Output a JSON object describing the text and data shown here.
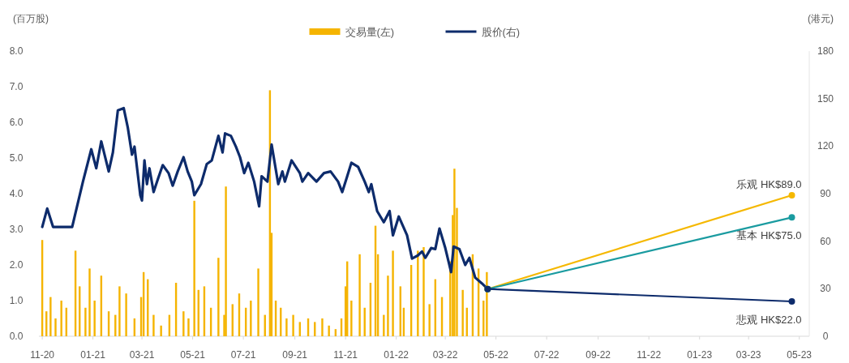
{
  "chart_data": {
    "type": "bar",
    "ylabel": "(百万股)",
    "y2label": "(港元)",
    "xlim": [
      "2020-10-28",
      "2023-05-13"
    ],
    "xticks": [
      {
        "value": "2020-11-01",
        "label": "11-20"
      },
      {
        "value": "2021-01-01",
        "label": "01-21"
      },
      {
        "value": "2021-03-01",
        "label": "03-21"
      },
      {
        "value": "2021-05-01",
        "label": "05-21"
      },
      {
        "value": "2021-07-01",
        "label": "07-21"
      },
      {
        "value": "2021-09-01",
        "label": "09-21"
      },
      {
        "value": "2021-11-01",
        "label": "11-21"
      },
      {
        "value": "2022-01-01",
        "label": "01-22"
      },
      {
        "value": "2022-03-01",
        "label": "03-22"
      },
      {
        "value": "2022-05-01",
        "label": "05-22"
      },
      {
        "value": "2022-07-01",
        "label": "07-22"
      },
      {
        "value": "2022-09-01",
        "label": "09-22"
      },
      {
        "value": "2022-11-01",
        "label": "11-22"
      },
      {
        "value": "2023-01-01",
        "label": "01-23"
      },
      {
        "value": "2023-03-01",
        "label": "03-23"
      },
      {
        "value": "2023-05-01",
        "label": "05-23"
      }
    ],
    "ylim": [
      0,
      8
    ],
    "yticks": [
      {
        "value": 0,
        "label": "0.0"
      },
      {
        "value": 1,
        "label": "1.0"
      },
      {
        "value": 2,
        "label": "2.0"
      },
      {
        "value": 3,
        "label": "3.0"
      },
      {
        "value": 4,
        "label": "4.0"
      },
      {
        "value": 5,
        "label": "5.0"
      },
      {
        "value": 6,
        "label": "6.0"
      },
      {
        "value": 7,
        "label": "7.0"
      },
      {
        "value": 8,
        "label": "8.0"
      }
    ],
    "y2lim": [
      0,
      180
    ],
    "y2ticks": [
      0,
      30,
      60,
      90,
      120,
      150,
      180
    ],
    "legend": "top",
    "grid": false,
    "series": [
      {
        "name": "交易量(左)",
        "color": "#f5b400",
        "x": [
          "2020-11-01",
          "2020-11-06",
          "2020-11-11",
          "2020-11-17",
          "2020-11-24",
          "2020-11-30",
          "2020-12-11",
          "2020-12-16",
          "2020-12-23",
          "2020-12-28",
          "2021-01-03",
          "2021-01-11",
          "2021-01-20",
          "2021-01-28",
          "2021-02-02",
          "2021-02-10",
          "2021-02-20",
          "2021-02-28",
          "2021-03-03",
          "2021-03-08",
          "2021-03-15",
          "2021-03-24",
          "2021-04-03",
          "2021-04-11",
          "2021-04-20",
          "2021-04-26",
          "2021-05-03",
          "2021-05-08",
          "2021-05-15",
          "2021-05-23",
          "2021-06-01",
          "2021-06-08",
          "2021-06-10",
          "2021-06-18",
          "2021-06-26",
          "2021-07-04",
          "2021-07-10",
          "2021-07-19",
          "2021-07-27",
          "2021-08-02",
          "2021-08-04",
          "2021-08-09",
          "2021-08-15",
          "2021-08-22",
          "2021-08-30",
          "2021-09-07",
          "2021-09-17",
          "2021-09-25",
          "2021-10-04",
          "2021-10-12",
          "2021-10-20",
          "2021-10-27",
          "2021-11-01",
          "2021-11-03",
          "2021-11-08",
          "2021-11-18",
          "2021-11-24",
          "2021-12-01",
          "2021-12-07",
          "2021-12-10",
          "2021-12-17",
          "2021-12-22",
          "2021-12-28",
          "2022-01-06",
          "2022-01-10",
          "2022-01-19",
          "2022-01-27",
          "2022-02-03",
          "2022-02-10",
          "2022-02-17",
          "2022-02-25",
          "2022-03-07",
          "2022-03-10",
          "2022-03-12",
          "2022-03-15",
          "2022-03-22",
          "2022-03-27",
          "2022-04-03",
          "2022-04-10",
          "2022-04-16",
          "2022-04-20"
        ],
        "values": [
          2.7,
          0.7,
          1.1,
          0.5,
          1.0,
          0.8,
          2.4,
          1.4,
          0.8,
          1.9,
          1.0,
          1.7,
          0.7,
          0.6,
          1.4,
          1.2,
          0.5,
          1.1,
          1.8,
          1.6,
          0.6,
          0.3,
          0.6,
          1.5,
          0.7,
          0.5,
          3.8,
          1.3,
          1.4,
          0.8,
          2.2,
          0.6,
          4.2,
          0.9,
          1.2,
          0.8,
          1.0,
          1.9,
          0.6,
          6.9,
          2.9,
          1.0,
          0.8,
          0.5,
          0.6,
          0.4,
          0.5,
          0.4,
          0.5,
          0.3,
          0.2,
          0.5,
          1.4,
          2.1,
          1.0,
          2.3,
          0.8,
          1.5,
          3.1,
          2.3,
          0.6,
          1.7,
          2.4,
          1.4,
          0.8,
          2.0,
          2.4,
          2.5,
          0.9,
          1.6,
          1.1,
          2.1,
          3.4,
          4.7,
          3.6,
          1.3,
          0.8,
          2.3,
          1.9,
          1.0,
          1.8
        ]
      },
      {
        "name": "股价(右)",
        "type": "line",
        "axis": "y2",
        "color": "#0d2b6b",
        "x": [
          "2020-11-01",
          "2020-11-07",
          "2020-11-14",
          "2020-12-07",
          "2020-12-20",
          "2020-12-30",
          "2021-01-05",
          "2021-01-11",
          "2021-01-20",
          "2021-01-25",
          "2021-01-31",
          "2021-02-07",
          "2021-02-12",
          "2021-02-17",
          "2021-02-20",
          "2021-02-27",
          "2021-03-01",
          "2021-03-04",
          "2021-03-07",
          "2021-03-10",
          "2021-03-15",
          "2021-03-20",
          "2021-03-26",
          "2021-04-02",
          "2021-04-07",
          "2021-04-13",
          "2021-04-20",
          "2021-04-25",
          "2021-04-30",
          "2021-05-03",
          "2021-05-11",
          "2021-05-18",
          "2021-05-24",
          "2021-06-01",
          "2021-06-06",
          "2021-06-09",
          "2021-06-16",
          "2021-06-22",
          "2021-06-27",
          "2021-07-02",
          "2021-07-07",
          "2021-07-14",
          "2021-07-20",
          "2021-07-23",
          "2021-07-30",
          "2021-08-04",
          "2021-08-12",
          "2021-08-17",
          "2021-08-20",
          "2021-08-28",
          "2021-09-07",
          "2021-09-10",
          "2021-09-17",
          "2021-09-27",
          "2021-10-06",
          "2021-10-14",
          "2021-10-23",
          "2021-10-28",
          "2021-11-03",
          "2021-11-08",
          "2021-11-16",
          "2021-11-24",
          "2021-11-29",
          "2021-12-02",
          "2021-12-09",
          "2021-12-17",
          "2021-12-24",
          "2021-12-28",
          "2022-01-04",
          "2022-01-14",
          "2022-01-20",
          "2022-01-27",
          "2022-02-01",
          "2022-02-05",
          "2022-02-12",
          "2022-02-17",
          "2022-02-22",
          "2022-03-01",
          "2022-03-08",
          "2022-03-11",
          "2022-03-18",
          "2022-03-25",
          "2022-03-30",
          "2022-04-06",
          "2022-04-14",
          "2022-04-21"
        ],
        "values": [
          69,
          80.6,
          69,
          69,
          97.6,
          118,
          106,
          123,
          104,
          116,
          142.6,
          144,
          131.6,
          114.6,
          119.7,
          89,
          85.7,
          111,
          96,
          106,
          91,
          99,
          108,
          103,
          95,
          104,
          113,
          104,
          97.6,
          89,
          96,
          108.7,
          111,
          126.5,
          116,
          128,
          126.5,
          119.7,
          113,
          103,
          109.5,
          97.6,
          82,
          101,
          97.6,
          121,
          96,
          104,
          97.6,
          111,
          103,
          97.6,
          103,
          97.6,
          103,
          104,
          97.6,
          91,
          101,
          109.5,
          107,
          97.6,
          91,
          96,
          79,
          72,
          79,
          63.7,
          75.6,
          63.7,
          49,
          51,
          53.5,
          49.5,
          55.7,
          55,
          68,
          55.7,
          40.5,
          56.6,
          55,
          45,
          49.5,
          37,
          33.4,
          29.8
        ]
      },
      {
        "type": "line",
        "axis": "y2",
        "color": "#f5b800",
        "marker": "circle",
        "x": [
          "2022-04-21",
          "2023-04-22"
        ],
        "values": [
          29.8,
          89
        ],
        "value_labels": [
          null,
          "乐观 HK$89.0"
        ]
      },
      {
        "type": "line",
        "axis": "y2",
        "color": "#1a9ba0",
        "marker": "circle",
        "x": [
          "2022-04-21",
          "2023-04-22"
        ],
        "values": [
          29.8,
          75
        ],
        "value_labels": [
          null,
          "基本 HK$75.0"
        ]
      },
      {
        "type": "line",
        "axis": "y2",
        "color": "#0d2b6b",
        "marker": "circle",
        "x": [
          "2022-04-21",
          "2023-04-22"
        ],
        "values": [
          29.8,
          22
        ],
        "value_labels": [
          null,
          "悲观 HK$22.0"
        ]
      }
    ]
  }
}
